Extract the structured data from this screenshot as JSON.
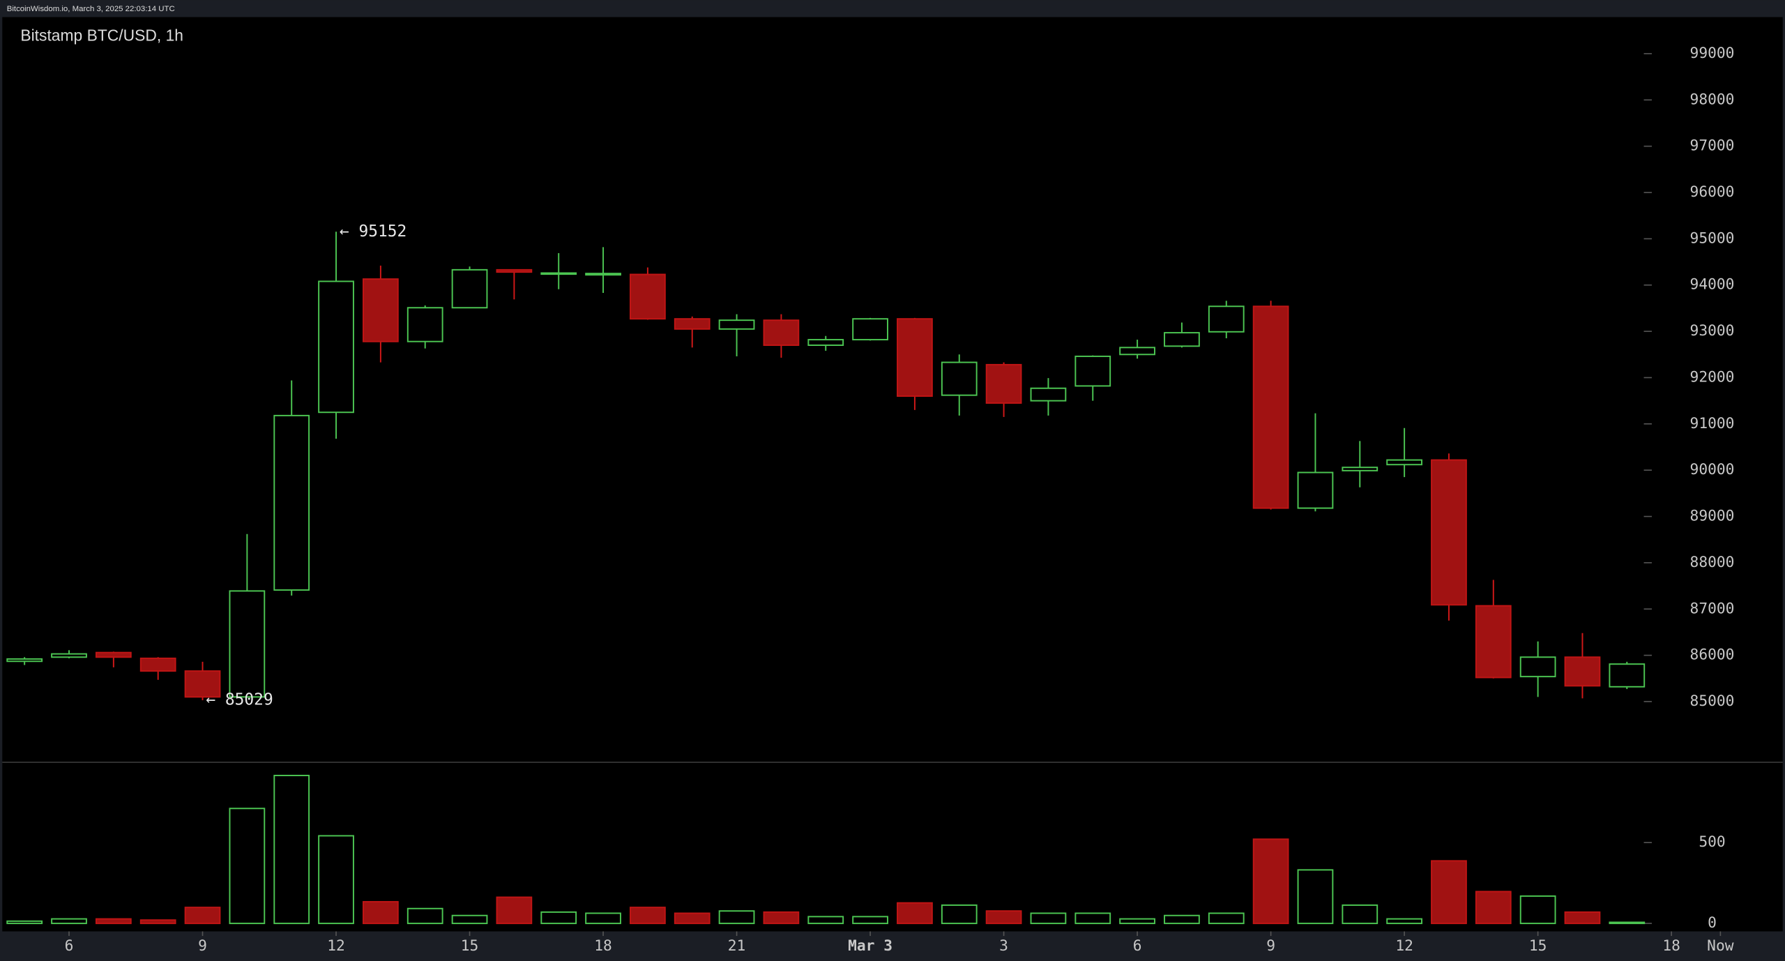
{
  "header": {
    "text": "BitcoinWisdom.io, March 3, 2025 22:03:14 UTC"
  },
  "chart_data": {
    "type": "candlestick",
    "title": "Bitstamp BTC/USD, 1h",
    "x": [
      0,
      1,
      2,
      3,
      4,
      5,
      6,
      7,
      8,
      9,
      10,
      11,
      12,
      13,
      14,
      15,
      16,
      17,
      18,
      19,
      20,
      21,
      22,
      23,
      24,
      25,
      26,
      27,
      28,
      29,
      30,
      31,
      32,
      33,
      34,
      35,
      36
    ],
    "open": [
      85870,
      85960,
      86060,
      85935,
      85660,
      85100,
      87410,
      91250,
      94130,
      92780,
      93510,
      94330,
      94250,
      94220,
      94230,
      93270,
      93050,
      93240,
      92700,
      92820,
      93270,
      91620,
      92280,
      91500,
      91820,
      92500,
      92680,
      92990,
      93540,
      89180,
      89990,
      90120,
      90220,
      87070,
      85540,
      85960,
      85320
    ],
    "high": [
      85960,
      86110,
      86080,
      85960,
      85860,
      88620,
      91940,
      95152,
      94420,
      93560,
      94400,
      94330,
      94690,
      94820,
      94380,
      93320,
      93370,
      93370,
      92900,
      93290,
      93290,
      92500,
      92330,
      91990,
      92480,
      92820,
      93190,
      93660,
      93660,
      91230,
      90630,
      90910,
      90360,
      87630,
      86300,
      86480,
      85860
    ],
    "low": [
      85790,
      85935,
      85740,
      85470,
      85029,
      85080,
      87290,
      90680,
      92330,
      92630,
      93500,
      93690,
      93910,
      93830,
      93250,
      92650,
      92460,
      92430,
      92580,
      92800,
      91300,
      91180,
      91150,
      91180,
      91500,
      92410,
      92650,
      92850,
      89150,
      89110,
      89630,
      89850,
      86750,
      85500,
      85100,
      85070,
      85270
    ],
    "close": [
      85920,
      86030,
      85960,
      85660,
      85100,
      87390,
      91180,
      94080,
      92780,
      93510,
      94330,
      94280,
      94260,
      94250,
      93270,
      93050,
      93240,
      92700,
      92820,
      93270,
      91600,
      92330,
      91450,
      91770,
      92460,
      92650,
      92970,
      93540,
      89180,
      89950,
      90060,
      90220,
      87090,
      85520,
      85960,
      85340,
      85810
    ],
    "volume": [
      14,
      28,
      28,
      21,
      99,
      711,
      915,
      542,
      134,
      92,
      49,
      162,
      70,
      63,
      99,
      63,
      77,
      70,
      42,
      42,
      127,
      113,
      77,
      63,
      63,
      28,
      49,
      63,
      521,
      331,
      113,
      28,
      387,
      197,
      169,
      70,
      7
    ],
    "up_color": "#4cc552",
    "down_color": "#a11212",
    "xlim": [
      -0.5,
      39.5
    ],
    "xticks": [
      {
        "value": 1,
        "label": "6"
      },
      {
        "value": 4,
        "label": "9"
      },
      {
        "value": 7,
        "label": "12"
      },
      {
        "value": 10,
        "label": "15"
      },
      {
        "value": 13,
        "label": "18"
      },
      {
        "value": 16,
        "label": "21"
      },
      {
        "value": 19,
        "label": "Mar 3"
      },
      {
        "value": 22,
        "label": "3"
      },
      {
        "value": 25,
        "label": "6"
      },
      {
        "value": 28,
        "label": "9"
      },
      {
        "value": 31,
        "label": "12"
      },
      {
        "value": 34,
        "label": "15"
      },
      {
        "value": 37,
        "label": "18"
      },
      {
        "value": 38.1,
        "label": "Now"
      }
    ],
    "ylim": [
      83700,
      99790
    ],
    "yticks": [
      85000,
      86000,
      87000,
      88000,
      89000,
      90000,
      91000,
      92000,
      93000,
      94000,
      95000,
      96000,
      97000,
      98000,
      99000
    ],
    "volume_ylim": [
      0,
      993
    ],
    "volume_yticks": [
      0,
      500
    ],
    "annotations": [
      {
        "label": "← 95152",
        "x": 7,
        "y": 95152
      },
      {
        "label": "← 85029",
        "x": 4,
        "y": 85029
      }
    ]
  }
}
